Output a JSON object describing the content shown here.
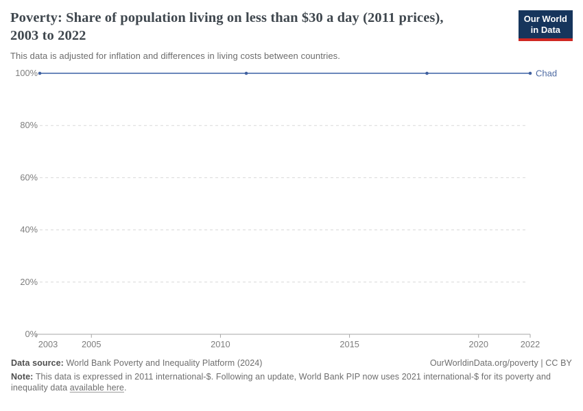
{
  "header": {
    "title": "Poverty: Share of population living on less than $30 a day (2011 prices), 2003 to 2022",
    "subtitle": "This data is adjusted for inflation and differences in living costs between countries."
  },
  "logo": {
    "line1": "Our World",
    "line2": "in Data",
    "bg_color": "#16355c",
    "bar_color": "#cf2722"
  },
  "chart_data": {
    "type": "line",
    "title": "Poverty: Share of population living on less than $30 a day (2011 prices), 2003 to 2022",
    "subtitle": "This data is adjusted for inflation and differences in living costs between countries.",
    "x": [
      2003,
      2011,
      2018,
      2022
    ],
    "series": [
      {
        "name": "Chad",
        "values": [
          100,
          100,
          100,
          100
        ]
      }
    ],
    "x_ticks": [
      2003,
      2005,
      2010,
      2015,
      2020,
      2022
    ],
    "y_ticks": [
      0,
      20,
      40,
      60,
      80,
      100
    ],
    "y_tick_suffix": "%",
    "xlim": [
      2003,
      2022
    ],
    "ylim": [
      0,
      100
    ],
    "grid": "horizontal-dashed",
    "legend_position": "end-of-line",
    "colors": {
      "line": "#6a87bb",
      "marker": "#41619f",
      "series_label": "#4e6ba3",
      "grid": "#d8d8d8",
      "axis": "#a5a5a5",
      "tick_text": "#7d7d7d"
    }
  },
  "footer": {
    "source_label": "Data source:",
    "source_text": "World Bank Poverty and Inequality Platform (2024)",
    "license_text": "OurWorldinData.org/poverty | CC BY",
    "note_label": "Note:",
    "note_text": "This data is expressed in 2011 international-$. Following an update, World Bank PIP now uses 2021 international-$ for its poverty and inequality data",
    "note_link": "available here",
    "note_period": "."
  }
}
